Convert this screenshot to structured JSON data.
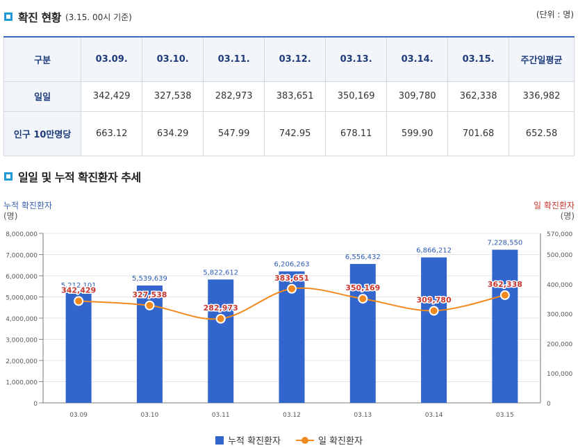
{
  "section1": {
    "title": "확진 현황",
    "subtitle": "(3.15. 00시 기준)",
    "unit": "(단위 : 명)"
  },
  "table": {
    "header_label": "구분",
    "columns": [
      "03.09.",
      "03.10.",
      "03.11.",
      "03.12.",
      "03.13.",
      "03.14.",
      "03.15.",
      "주간일평균"
    ],
    "rows": [
      {
        "label": "일일",
        "values": [
          "342,429",
          "327,538",
          "282,973",
          "383,651",
          "350,169",
          "309,780",
          "362,338",
          "336,982"
        ]
      },
      {
        "label": "인구 10만명당",
        "values": [
          "663.12",
          "634.29",
          "547.99",
          "742.95",
          "678.11",
          "599.90",
          "701.68",
          "652.58"
        ]
      }
    ]
  },
  "section2": {
    "title": "일일 및 누적 확진환자 추세"
  },
  "colors": {
    "bar": "#3366cc",
    "line": "#f2891e",
    "bar_label": "#2d5bb1",
    "line_label": "#c8372e",
    "accent": "#1f9bd7"
  },
  "chart_data": {
    "type": "bar+line",
    "categories": [
      "03.09",
      "03.10",
      "03.11",
      "03.12",
      "03.13",
      "03.14",
      "03.15"
    ],
    "series": [
      {
        "name": "누적 확진환자",
        "type": "bar",
        "axis": "left",
        "values": [
          5212101,
          5539639,
          5822612,
          6206263,
          6556432,
          6866212,
          7228550
        ],
        "labels": [
          "5,212,101",
          "5,539,639",
          "5,822,612",
          "6,206,263",
          "6,556,432",
          "6,866,212",
          "7,228,550"
        ]
      },
      {
        "name": "일 확진환자",
        "type": "line",
        "axis": "right",
        "values": [
          342429,
          327538,
          282973,
          383651,
          350169,
          309780,
          362338
        ],
        "labels": [
          "342,429",
          "327,538",
          "282,973",
          "383,651",
          "350,169",
          "309,780",
          "362,338"
        ]
      }
    ],
    "left_axis": {
      "title": "누적 확진환자",
      "unit": "(명)",
      "ylim": [
        0,
        8000000
      ],
      "ticks": [
        "0",
        "1,000,000",
        "2,000,000",
        "3,000,000",
        "4,000,000",
        "5,000,000",
        "6,000,000",
        "7,000,000",
        "8,000,000"
      ]
    },
    "right_axis": {
      "title": "일 확진환자",
      "unit": "(명)",
      "ylim": [
        0,
        570000
      ],
      "ticks": [
        {
          "v": 0,
          "label": "0"
        },
        {
          "v": 100000,
          "label": "100,000"
        },
        {
          "v": 200000,
          "label": "200,000"
        },
        {
          "v": 300000,
          "label": "300,000"
        },
        {
          "v": 400000,
          "label": "400,000"
        },
        {
          "v": 500000,
          "label": "500,000"
        },
        {
          "v": 570000,
          "label": "570,000"
        }
      ]
    },
    "legend": [
      {
        "name": "누적 확진환자",
        "type": "bar"
      },
      {
        "name": "일 확진환자",
        "type": "line"
      }
    ],
    "legend_position": "bottom-center"
  }
}
